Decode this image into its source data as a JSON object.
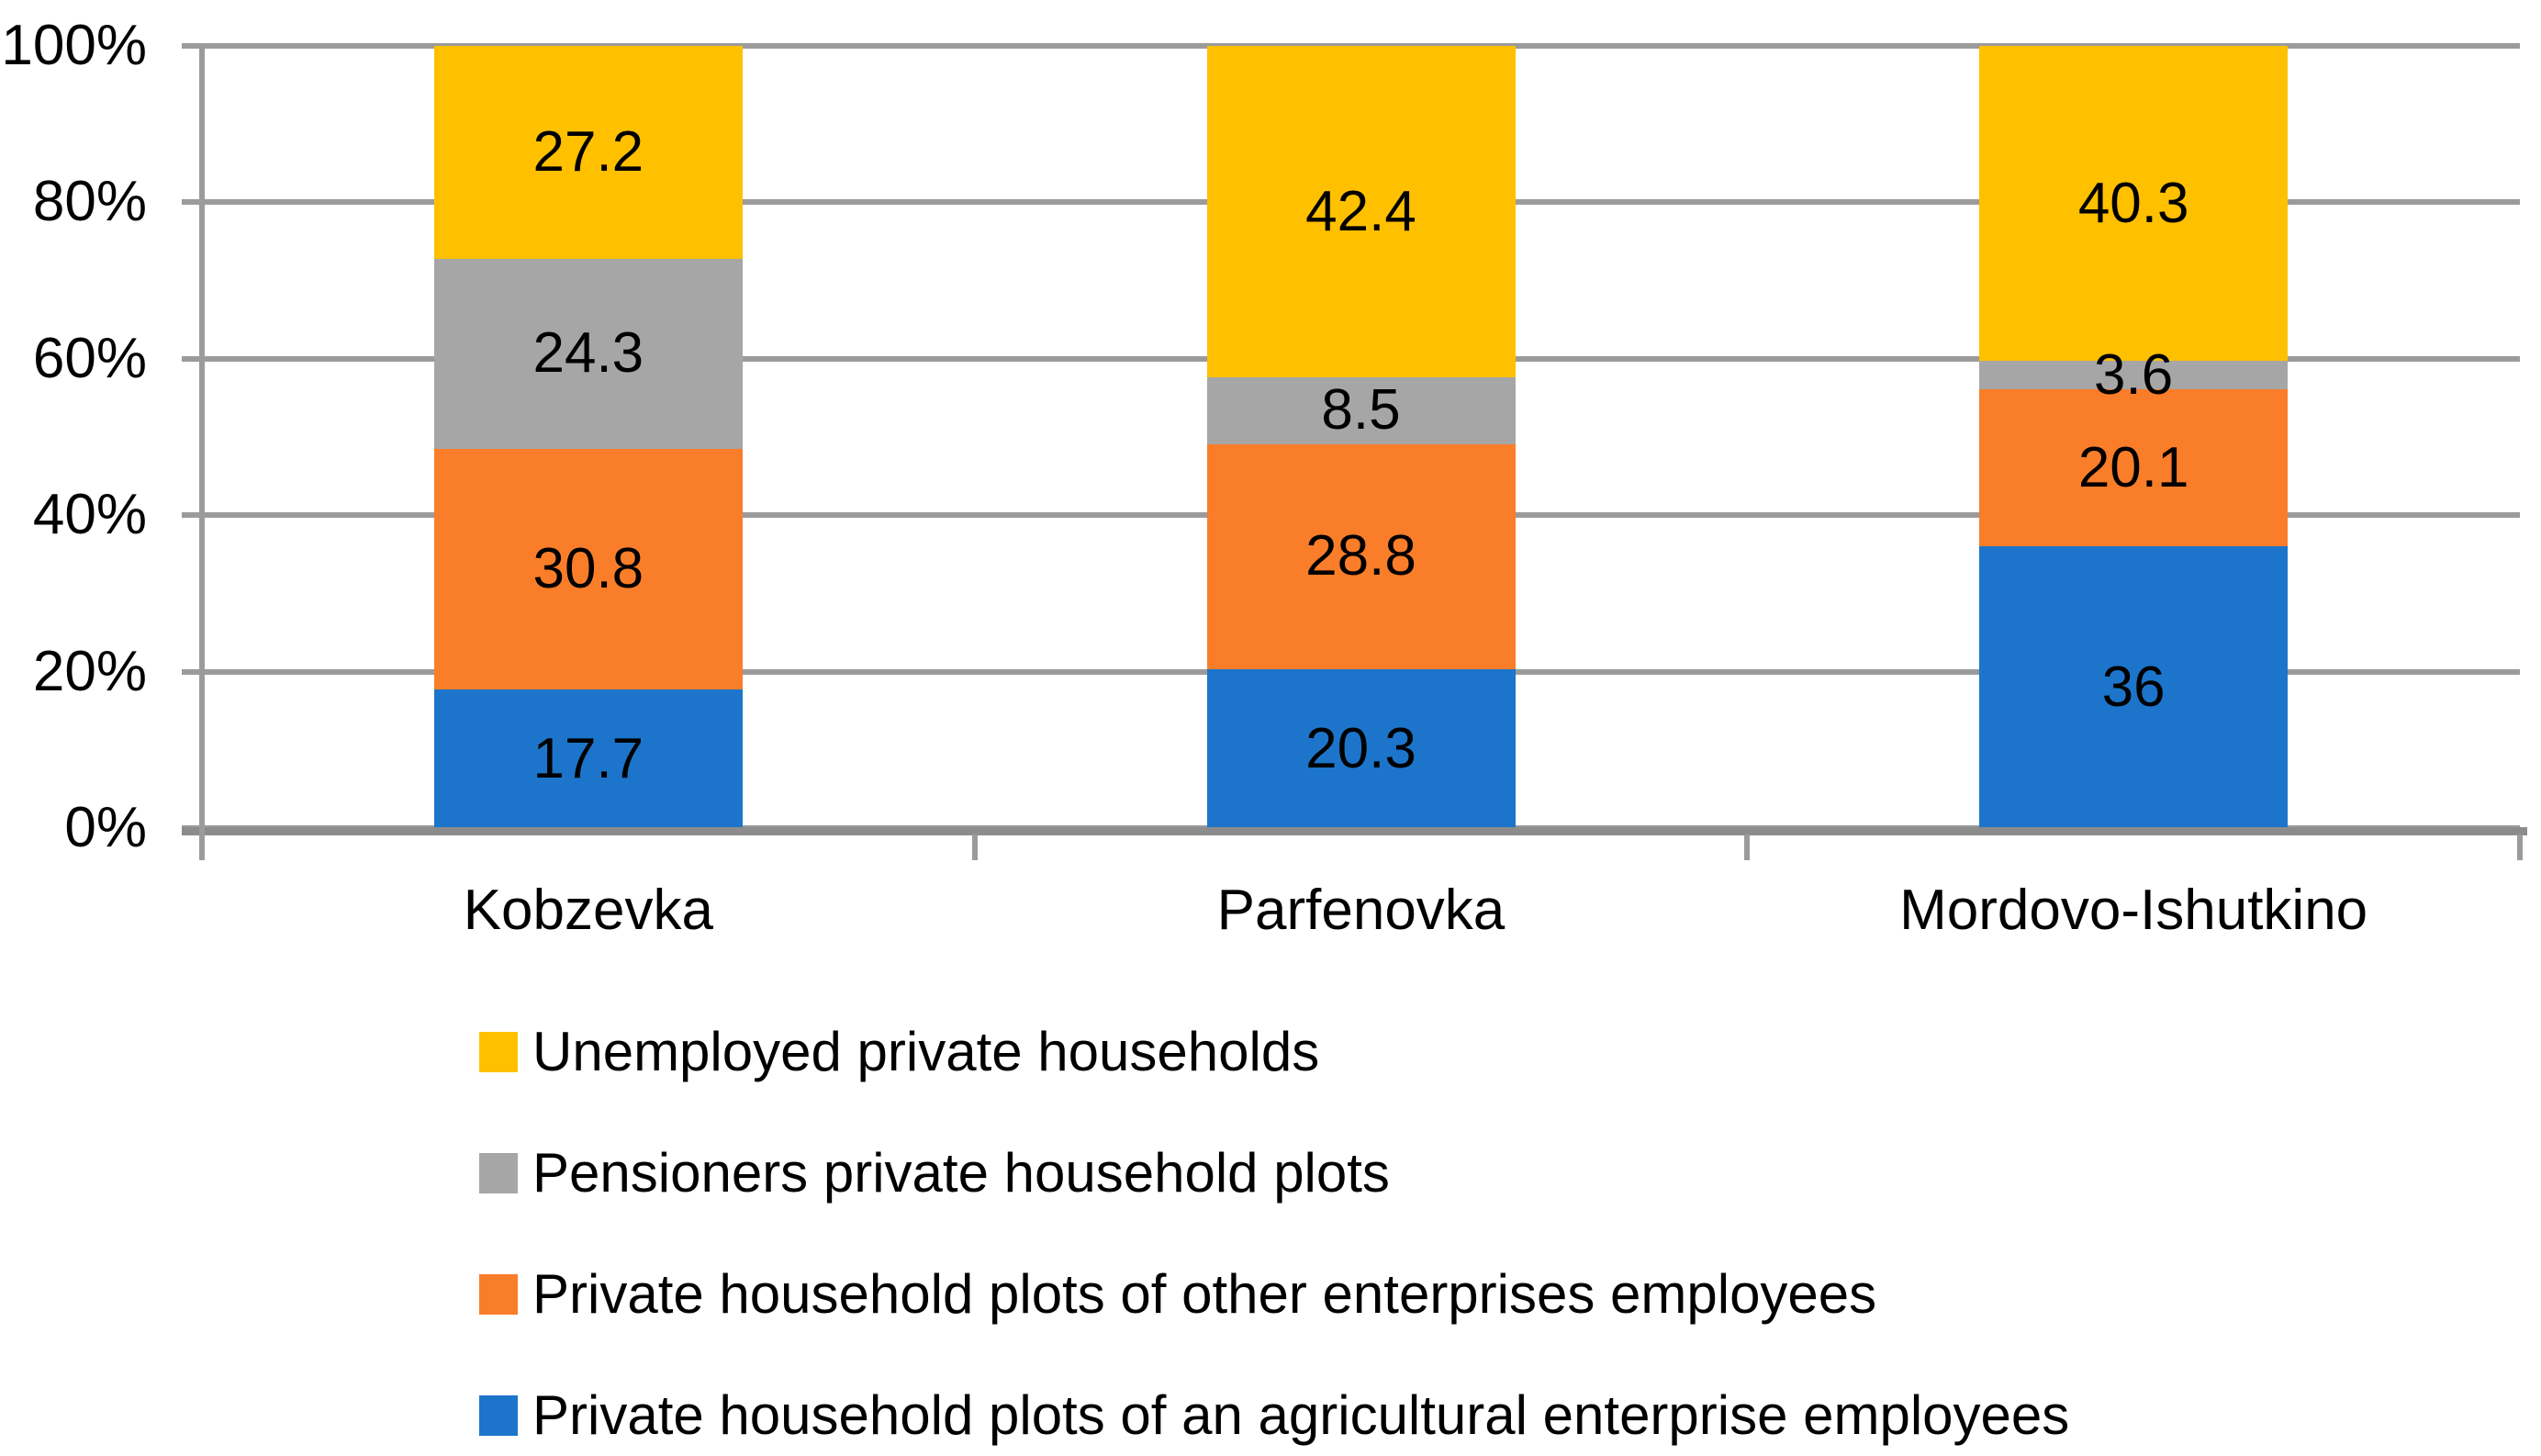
{
  "chart_data": {
    "type": "bar",
    "subtype": "stacked-100-percent-column",
    "title": "",
    "categories": [
      "Kobzevka",
      "Parfenovka",
      "Mordovo-Ishutkino"
    ],
    "series": [
      {
        "name": "Private household plots of an agricultural enterprise employees",
        "color": "#1C75CB",
        "values": [
          17.7,
          20.3,
          36
        ]
      },
      {
        "name": "Private household plots of other enterprises employees",
        "color": "#FA7D29",
        "values": [
          30.8,
          28.8,
          20.1
        ]
      },
      {
        "name": "Pensioners private household plots",
        "color": "#A6A6A6",
        "values": [
          24.3,
          8.5,
          3.6
        ]
      },
      {
        "name": "Unemployed private households",
        "color": "#FFC000",
        "values": [
          27.2,
          42.4,
          40.3
        ]
      }
    ],
    "y_axis": {
      "tick_labels": [
        "0%",
        "20%",
        "40%",
        "60%",
        "80%",
        "100%"
      ],
      "tick_values": [
        0,
        20,
        40,
        60,
        80,
        100
      ],
      "min": 0,
      "max": 100
    },
    "xlabel": "",
    "ylabel": "",
    "grid": true,
    "gridline_color": "#9B9B9B",
    "axis_color": "#8C8C8C",
    "value_label_position": "inside-center",
    "value_label_color": "#000000",
    "legend": {
      "position": "bottom-left",
      "order": [
        "Unemployed private households",
        "Pensioners private household plots",
        "Private household plots of other enterprises employees",
        "Private household plots of an agricultural enterprise employees"
      ]
    }
  }
}
